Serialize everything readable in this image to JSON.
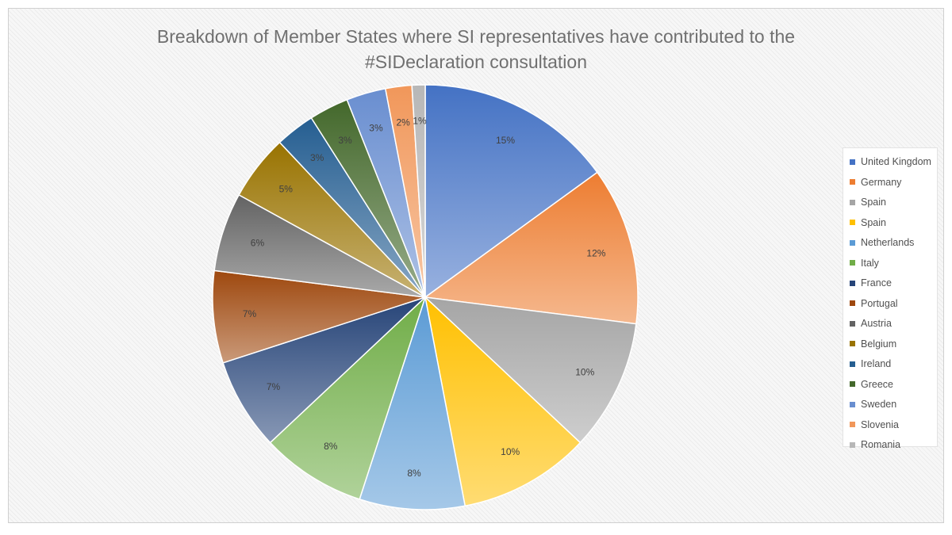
{
  "chart_data": {
    "type": "pie",
    "title": "Breakdown of Member States where SI representatives have contributed to the #SIDeclaration consultation",
    "title_lines": [
      "Breakdown of Member States where SI representatives have contributed to the",
      "#SIDeclaration consultation"
    ],
    "legend_position": "right",
    "slices": [
      {
        "label": "United Kingdom",
        "value": 15,
        "display": "15%",
        "color": "#4472c4"
      },
      {
        "label": "Germany",
        "value": 12,
        "display": "12%",
        "color": "#ed7d31"
      },
      {
        "label": "Spain",
        "value": 10,
        "display": "10%",
        "color": "#a5a5a5"
      },
      {
        "label": "Spain",
        "value": 10,
        "display": "10%",
        "color": "#ffc000"
      },
      {
        "label": "Netherlands",
        "value": 8,
        "display": "8%",
        "color": "#5b9bd5"
      },
      {
        "label": "Italy",
        "value": 8,
        "display": "8%",
        "color": "#70ad47"
      },
      {
        "label": "France",
        "value": 7,
        "display": "7%",
        "color": "#264478"
      },
      {
        "label": "Portugal",
        "value": 7,
        "display": "7%",
        "color": "#9e480e"
      },
      {
        "label": "Austria",
        "value": 6,
        "display": "6%",
        "color": "#636363"
      },
      {
        "label": "Belgium",
        "value": 5,
        "display": "5%",
        "color": "#997300"
      },
      {
        "label": "Ireland",
        "value": 3,
        "display": "3%",
        "color": "#255e91"
      },
      {
        "label": "Greece",
        "value": 3,
        "display": "3%",
        "color": "#43682b"
      },
      {
        "label": "Sweden",
        "value": 3,
        "display": "3%",
        "color": "#698ed0"
      },
      {
        "label": "Slovenia",
        "value": 2,
        "display": "2%",
        "color": "#f1975a"
      },
      {
        "label": "Romania",
        "value": 1,
        "display": "1%",
        "color": "#b7b7b7"
      }
    ]
  }
}
